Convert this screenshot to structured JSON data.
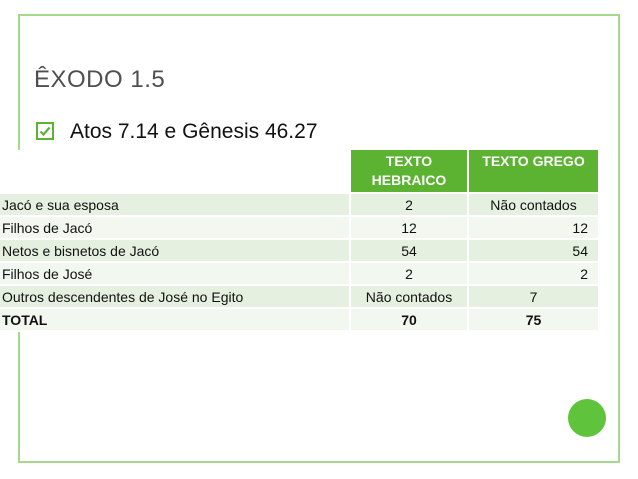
{
  "slide": {
    "title": "ÊXODO 1.5",
    "bullet": "Atos 7.14 e Gênesis 46.27",
    "bullet_icon": "check-square-icon",
    "colors": {
      "frame": "#a6d98d",
      "header": "#5bb331",
      "row_odd": "#e6f0e0",
      "row_even": "#f2f7ef",
      "accent_circle": "#5fc43b"
    }
  },
  "table": {
    "headers": [
      "",
      "TEXTO HEBRAICO",
      "TEXTO GREGO"
    ],
    "rows": [
      {
        "label": "Jacó e sua esposa",
        "hebraico": "2",
        "grego": "Não contados"
      },
      {
        "label": "Filhos de Jacó",
        "hebraico": "12",
        "grego": "12"
      },
      {
        "label": "Netos e bisnetos de Jacó",
        "hebraico": "54",
        "grego": "54"
      },
      {
        "label": "Filhos de José",
        "hebraico": "2",
        "grego": "2"
      },
      {
        "label": "Outros descendentes de José no Egito",
        "hebraico": "Não contados",
        "grego": "7"
      },
      {
        "label": "TOTAL",
        "hebraico": "70",
        "grego": "75"
      }
    ]
  }
}
